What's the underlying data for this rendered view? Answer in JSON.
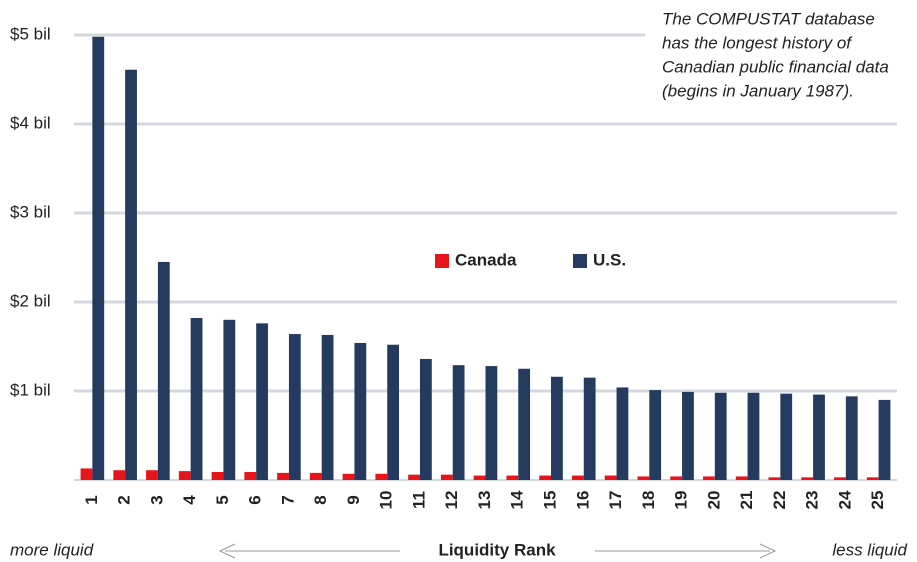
{
  "chart_data": {
    "type": "bar",
    "categories": [
      "1",
      "2",
      "3",
      "4",
      "5",
      "6",
      "7",
      "8",
      "9",
      "10",
      "11",
      "12",
      "13",
      "14",
      "15",
      "16",
      "17",
      "18",
      "19",
      "20",
      "21",
      "22",
      "23",
      "24",
      "25"
    ],
    "series": [
      {
        "name": "Canada",
        "color": "#e8141b",
        "values": [
          0.13,
          0.11,
          0.11,
          0.1,
          0.09,
          0.09,
          0.08,
          0.08,
          0.07,
          0.07,
          0.06,
          0.06,
          0.05,
          0.05,
          0.05,
          0.05,
          0.05,
          0.04,
          0.04,
          0.04,
          0.04,
          0.03,
          0.03,
          0.03,
          0.03
        ]
      },
      {
        "name": "U.S.",
        "color": "#243a5e",
        "values": [
          4.98,
          4.61,
          2.45,
          1.82,
          1.8,
          1.76,
          1.64,
          1.63,
          1.54,
          1.52,
          1.36,
          1.29,
          1.28,
          1.25,
          1.16,
          1.15,
          1.04,
          1.01,
          0.99,
          0.98,
          0.98,
          0.97,
          0.96,
          0.94,
          0.9
        ]
      }
    ],
    "ylim": [
      0,
      5
    ],
    "yticks": [
      {
        "value": 1,
        "label": "$1 bil"
      },
      {
        "value": 2,
        "label": "$2 bil"
      },
      {
        "value": 3,
        "label": "$3 bil"
      },
      {
        "value": 4,
        "label": "$4 bil"
      },
      {
        "value": 5,
        "label": "$5 bil"
      }
    ],
    "grid": true,
    "legend": "center",
    "annotation": [
      "The COMPUSTAT database",
      "has the longest history of",
      "Canadian public financial data",
      "(begins in January 1987)."
    ],
    "xlabel": "Liquidity Rank",
    "xlabel_left": "more liquid",
    "xlabel_right": "less liquid"
  }
}
